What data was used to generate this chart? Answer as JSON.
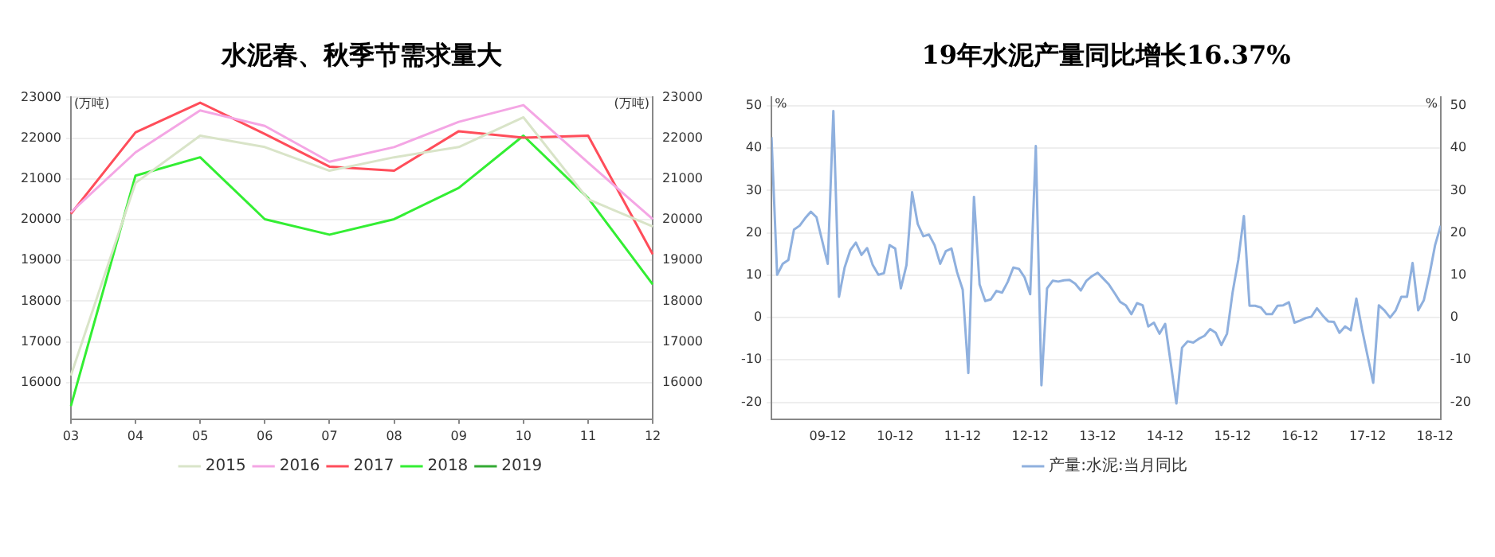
{
  "chart_data": [
    {
      "type": "line",
      "title": "水泥春、秋季节需求量大",
      "ylabel": "(万吨)",
      "y2label": "(万吨)",
      "categories": [
        "03",
        "04",
        "05",
        "06",
        "07",
        "08",
        "09",
        "10",
        "11",
        "12"
      ],
      "series": [
        {
          "name": "2015",
          "color": "#d9e4c8",
          "values": [
            16170,
            20900,
            22060,
            21780,
            21200,
            21530,
            21780,
            22510,
            20500,
            19830
          ]
        },
        {
          "name": "2016",
          "color": "#f4a6e4",
          "values": [
            20180,
            21650,
            22680,
            22300,
            21420,
            21780,
            22400,
            22810,
            21400,
            20010
          ]
        },
        {
          "name": "2017",
          "color": "#ff4d5a",
          "values": [
            20140,
            22140,
            22870,
            22100,
            21300,
            21200,
            22170,
            22010,
            22060,
            19150
          ]
        },
        {
          "name": "2018",
          "color": "#33ee33",
          "values": [
            15420,
            21080,
            21530,
            20010,
            19630,
            20010,
            20780,
            22060,
            20530,
            18410
          ]
        },
        {
          "name": "2019",
          "color": "#33aa33",
          "values": [
            null,
            null,
            null,
            null,
            null,
            null,
            null,
            null,
            null,
            null
          ]
        }
      ],
      "ylim": [
        15100,
        23000
      ],
      "yticks": [
        16000,
        17000,
        18000,
        19000,
        20000,
        21000,
        22000,
        23000
      ],
      "y2lim": [
        15100,
        23000
      ],
      "y2ticks": [
        16000,
        17000,
        18000,
        19000,
        20000,
        21000,
        22000,
        23000
      ],
      "grid": "y",
      "legend": "bottom",
      "marker": "none",
      "line_style": "solid"
    },
    {
      "type": "line",
      "title": "19年水泥产量同比增长16.37%",
      "ylabel": "%",
      "y2label": "%",
      "x": [
        "2009-02",
        "2009-03",
        "2009-04",
        "2009-05",
        "2009-06",
        "2009-07",
        "2009-08",
        "2009-09",
        "2009-10",
        "2009-11",
        "2009-12",
        "2010-01",
        "2010-02",
        "2010-03",
        "2010-04",
        "2010-05",
        "2010-06",
        "2010-07",
        "2010-08",
        "2010-09",
        "2010-10",
        "2010-11",
        "2010-12",
        "2011-01",
        "2011-02",
        "2011-03",
        "2011-04",
        "2011-05",
        "2011-06",
        "2011-07",
        "2011-08",
        "2011-09",
        "2011-10",
        "2011-11",
        "2011-12",
        "2012-01",
        "2012-02",
        "2012-03",
        "2012-04",
        "2012-05",
        "2012-06",
        "2012-07",
        "2012-08",
        "2012-09",
        "2012-10",
        "2012-11",
        "2012-12",
        "2013-01",
        "2013-02",
        "2013-03",
        "2013-04",
        "2013-05",
        "2013-06",
        "2013-07",
        "2013-08",
        "2013-09",
        "2013-10",
        "2013-11",
        "2013-12",
        "2014-01",
        "2014-02",
        "2014-03",
        "2014-04",
        "2014-05",
        "2014-06",
        "2014-07",
        "2014-08",
        "2014-09",
        "2014-10",
        "2014-11",
        "2014-12",
        "2015-01",
        "2015-02",
        "2015-03",
        "2015-04",
        "2015-05",
        "2015-06",
        "2015-07",
        "2015-08",
        "2015-09",
        "2015-10",
        "2015-11",
        "2015-12",
        "2016-01",
        "2016-02",
        "2016-03",
        "2016-04",
        "2016-05",
        "2016-06",
        "2016-07",
        "2016-08",
        "2016-09",
        "2016-10",
        "2016-11",
        "2016-12",
        "2017-01",
        "2017-02",
        "2017-03",
        "2017-04",
        "2017-05",
        "2017-06",
        "2017-07",
        "2017-08",
        "2017-09",
        "2017-10",
        "2017-11",
        "2017-12",
        "2018-01",
        "2018-02",
        "2018-03",
        "2018-04",
        "2018-05",
        "2018-06",
        "2018-07",
        "2018-08",
        "2018-09",
        "2018-10",
        "2018-11",
        "2018-12",
        "2019-01"
      ],
      "series": [
        {
          "name": "产量:水泥:当月同比",
          "color": "#8fb0de",
          "values": [
            42.6,
            10.1,
            12.7,
            13.6,
            20.8,
            21.7,
            23.5,
            25,
            23.7,
            18.2,
            12.7,
            48.8,
            4.9,
            11.8,
            15.9,
            17.7,
            14.8,
            16.4,
            12.4,
            10.1,
            10.5,
            17.1,
            16.3,
            6.9,
            12.4,
            29.6,
            22.1,
            19.2,
            19.6,
            17.1,
            12.7,
            15.7,
            16.3,
            10.7,
            6.6,
            -13.1,
            28.5,
            7.8,
            3.9,
            4.3,
            6.3,
            5.9,
            8.4,
            11.8,
            11.5,
            9.5,
            5.5,
            40.5,
            -16,
            6.9,
            8.7,
            8.5,
            8.8,
            8.9,
            8,
            6.4,
            8.7,
            9.8,
            10.6,
            9.2,
            7.8,
            5.8,
            3.7,
            2.9,
            0.8,
            3.4,
            2.9,
            -2.1,
            -1.2,
            -3.8,
            -1.5,
            -10.8,
            -20.3,
            -7.1,
            -5.6,
            -5.9,
            -5,
            -4.3,
            -2.7,
            -3.6,
            -6.5,
            -3.8,
            6,
            13.6,
            24,
            2.8,
            2.8,
            2.4,
            0.8,
            0.8,
            2.8,
            2.9,
            3.6,
            -1.2,
            -0.7,
            -0.1,
            0.2,
            2.2,
            0.5,
            -0.9,
            -1,
            -3.6,
            -2.1,
            -3,
            4.5,
            -2.7,
            -9.1,
            -15.4,
            2.9,
            1.7,
            0,
            1.7,
            4.9,
            4.9,
            12.9,
            1.7,
            4.1,
            10.1,
            17.1,
            21.7
          ]
        }
      ],
      "xlim": [
        "2009-02",
        "2019-01"
      ],
      "xticks": [
        {
          "value": "2009-12",
          "label": "09-12"
        },
        {
          "value": "2010-12",
          "label": "10-12"
        },
        {
          "value": "2011-12",
          "label": "11-12"
        },
        {
          "value": "2012-12",
          "label": "12-12"
        },
        {
          "value": "2013-12",
          "label": "13-12"
        },
        {
          "value": "2014-12",
          "label": "14-12"
        },
        {
          "value": "2015-12",
          "label": "15-12"
        },
        {
          "value": "2016-12",
          "label": "16-12"
        },
        {
          "value": "2017-12",
          "label": "17-12"
        },
        {
          "value": "2018-12",
          "label": "18-12"
        }
      ],
      "ylim": [
        -24,
        52
      ],
      "yticks": [
        -20,
        -10,
        0,
        10,
        20,
        30,
        40,
        50
      ],
      "y2lim": [
        -24,
        52
      ],
      "y2ticks": [
        -20,
        -10,
        0,
        10,
        20,
        30,
        40,
        50
      ],
      "grid": "y",
      "legend": "bottom",
      "marker": "none",
      "line_style": "solid"
    }
  ]
}
